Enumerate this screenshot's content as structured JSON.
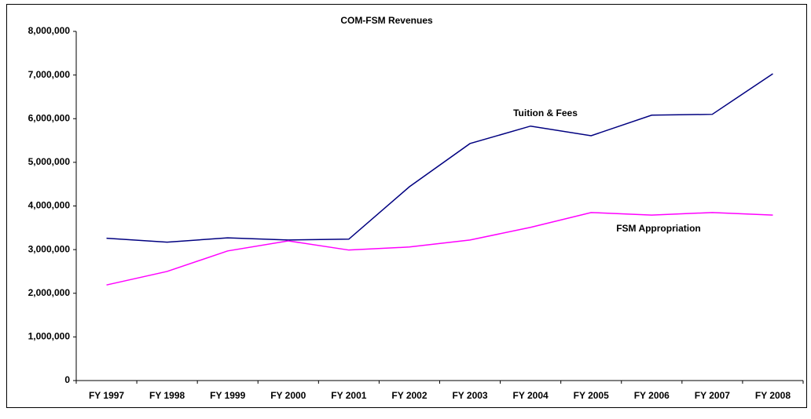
{
  "chart_data": {
    "type": "line",
    "title": "COM-FSM Revenues",
    "categories": [
      "FY 1997",
      "FY 1998",
      "FY 1999",
      "FY 2000",
      "FY 2001",
      "FY 2002",
      "FY 2003",
      "FY 2004",
      "FY 2005",
      "FY 2006",
      "FY 2007",
      "FY 2008"
    ],
    "series": [
      {
        "name": "Tuition & Fees",
        "color": "#000080",
        "values": [
          3260000,
          3170000,
          3270000,
          3220000,
          3240000,
          4440000,
          5430000,
          5830000,
          5610000,
          6080000,
          6100000,
          7030000
        ]
      },
      {
        "name": "FSM Appropriation",
        "color": "#ff00ff",
        "values": [
          2190000,
          2500000,
          2970000,
          3200000,
          2990000,
          3060000,
          3220000,
          3510000,
          3850000,
          3790000,
          3850000,
          3790000
        ]
      }
    ],
    "ylim": [
      0,
      8000000
    ],
    "yticks": [
      0,
      {
        "value": 1000000,
        "label": "1,000,000"
      },
      {
        "value": 2000000,
        "label": "2,000,000"
      },
      {
        "value": 3000000,
        "label": "3,000,000"
      },
      {
        "value": 4000000,
        "label": "4,000,000"
      },
      {
        "value": 5000000,
        "label": "5,000,000"
      },
      {
        "value": 6000000,
        "label": "6,000,000"
      },
      {
        "value": 7000000,
        "label": "7,000,000"
      },
      {
        "value": 8000000,
        "label": "8,000,000"
      }
    ],
    "grid": false
  }
}
